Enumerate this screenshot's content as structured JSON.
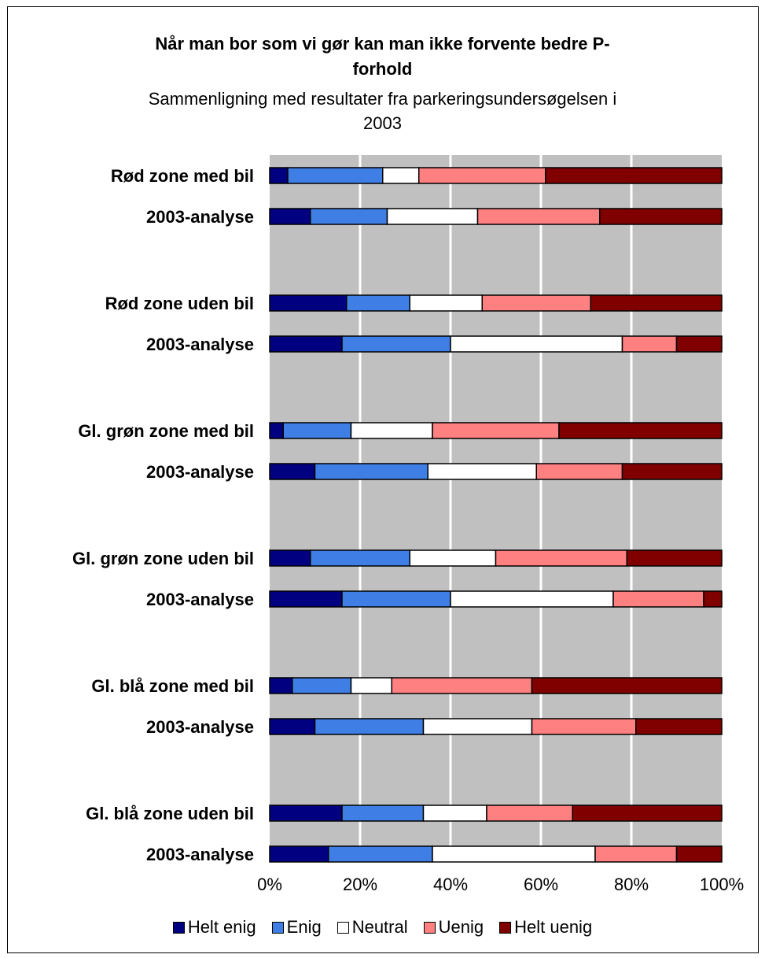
{
  "chart_data": {
    "type": "bar",
    "orientation": "horizontal",
    "stacked": "percent",
    "title": "Når man bor som vi gør kan man ikke forvente bedre P-forhold",
    "title_lines": [
      "Når man bor som vi gør kan man ikke forvente bedre P-",
      "forhold"
    ],
    "subtitle": "Sammenligning med resultater fra parkeringsundersøgelsen i 2003",
    "subtitle_lines": [
      "Sammenligning med resultater fra parkeringsundersøgelsen i",
      "2003"
    ],
    "categories": [
      "Rød zone med bil",
      "2003-analyse",
      "Rød zone uden bil",
      "2003-analyse",
      "Gl. grøn zone med bil",
      "2003-analyse",
      "Gl. grøn zone uden bil",
      "2003-analyse",
      "Gl. blå zone med bil",
      "2003-analyse",
      "Gl. blå zone uden bil",
      "2003-analyse"
    ],
    "series": [
      {
        "name": "Helt enig",
        "color": "#000080",
        "values": [
          4,
          9,
          17,
          16,
          3,
          10,
          9,
          16,
          5,
          10,
          16,
          13
        ]
      },
      {
        "name": "Enig",
        "color": "#3F7FE5",
        "values": [
          21,
          17,
          14,
          24,
          15,
          25,
          22,
          24,
          13,
          24,
          18,
          23
        ]
      },
      {
        "name": "Neutral",
        "color": "#FFFFFF",
        "values": [
          8,
          20,
          16,
          38,
          18,
          24,
          19,
          36,
          9,
          24,
          14,
          36
        ]
      },
      {
        "name": "Uenig",
        "color": "#FF8080",
        "values": [
          28,
          27,
          24,
          12,
          28,
          19,
          29,
          20,
          31,
          23,
          19,
          18
        ]
      },
      {
        "name": "Helt uenig",
        "color": "#800000",
        "values": [
          39,
          27,
          29,
          10,
          36,
          22,
          21,
          4,
          42,
          19,
          33,
          10
        ]
      }
    ],
    "xlim": [
      0,
      100
    ],
    "xticks": [
      "0%",
      "20%",
      "40%",
      "60%",
      "80%",
      "100%"
    ],
    "grid": true,
    "plot_background": "#C0C0C0",
    "gridline_color": "#FFFFFF",
    "legend": "bottom"
  }
}
